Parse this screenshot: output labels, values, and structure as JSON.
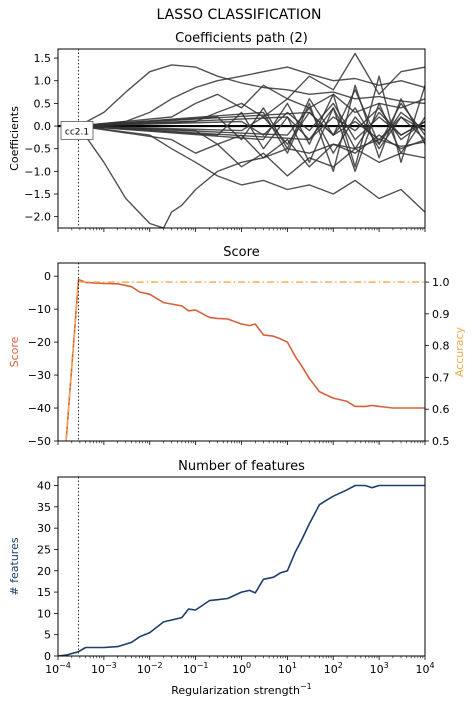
{
  "figure": {
    "title": "LASSO CLASSIFICATION"
  },
  "chart_data": [
    {
      "type": "line",
      "title": "Coefficients path (2)",
      "ylabel": "Coefficients",
      "xscale": "log",
      "xlim": [
        0.0001,
        10000
      ],
      "ylim": [
        -2.25,
        1.7
      ],
      "yticks": [
        {
          "v": 1.5,
          "label": "1.5"
        },
        {
          "v": 1.0,
          "label": "1.0"
        },
        {
          "v": 0.5,
          "label": "0.5"
        },
        {
          "v": 0.0,
          "label": "0.0"
        },
        {
          "v": -0.5,
          "label": "−0.5"
        },
        {
          "v": -1.0,
          "label": "−1.0"
        },
        {
          "v": -1.5,
          "label": "−1.5"
        },
        {
          "v": -2.0,
          "label": "−2.0"
        }
      ],
      "vline_x": 0.00028,
      "annotation": "cc2.1",
      "line_color": "#333333",
      "series": [
        {
          "x": [
            0.00028,
            0.001,
            0.003,
            0.01,
            0.03,
            0.1,
            0.3,
            1,
            3,
            10,
            30,
            100,
            300,
            1000,
            3000,
            10000
          ],
          "values": [
            0,
            0.3,
            0.75,
            1.2,
            1.35,
            1.3,
            1.1,
            0.95,
            0.85,
            0.8,
            0.7,
            0.75,
            0.6,
            0.65,
            0.55,
            0.5
          ]
        },
        {
          "x": [
            0.00028,
            0.001,
            0.003,
            0.01,
            0.02,
            0.03,
            0.05,
            0.1,
            0.3,
            1,
            3,
            10,
            30,
            100,
            300,
            1000,
            3000,
            10000
          ],
          "values": [
            0,
            -0.8,
            -1.6,
            -2.15,
            -2.25,
            -1.9,
            -1.75,
            -1.4,
            -1.0,
            -0.8,
            -0.7,
            -0.5,
            -0.6,
            -0.4,
            -0.5,
            -0.3,
            -0.45,
            -0.35
          ]
        },
        {
          "x": [
            0.00028,
            0.003,
            0.01,
            0.03,
            0.1,
            0.3,
            1,
            3,
            10,
            30,
            100,
            300,
            1000,
            3000,
            10000
          ],
          "values": [
            0,
            0.1,
            0.3,
            0.6,
            0.85,
            1.0,
            1.1,
            1.2,
            1.3,
            1.15,
            1.0,
            1.05,
            0.9,
            1.0,
            0.85
          ]
        },
        {
          "x": [
            0.00028,
            0.01,
            0.03,
            0.1,
            0.3,
            1,
            3,
            10,
            30,
            100,
            300,
            1000,
            3000,
            10000
          ],
          "values": [
            0,
            -0.2,
            -0.5,
            -0.8,
            -1.1,
            -1.3,
            -1.2,
            -1.4,
            -1.3,
            -1.5,
            -1.2,
            -1.6,
            -1.4,
            -1.9
          ]
        },
        {
          "x": [
            0.00028,
            0.03,
            0.1,
            0.3,
            1,
            3,
            10,
            30,
            100,
            300,
            1000,
            3000,
            10000
          ],
          "values": [
            0,
            0.2,
            0.5,
            0.7,
            0.4,
            0.9,
            0.6,
            1.1,
            0.8,
            1.6,
            0.7,
            1.2,
            1.3
          ]
        },
        {
          "x": [
            0.00028,
            0.03,
            0.1,
            0.3,
            1,
            3,
            10,
            30,
            100,
            300,
            1000,
            3000,
            10000
          ],
          "values": [
            0,
            -0.3,
            -0.6,
            -0.4,
            -0.9,
            -0.6,
            -1.1,
            -0.7,
            -0.9,
            -0.5,
            -0.8,
            -0.6,
            -0.7
          ]
        },
        {
          "x": [
            0.00028,
            0.1,
            0.3,
            1,
            3,
            10,
            30,
            100,
            300,
            1000,
            3000,
            10000
          ],
          "values": [
            0,
            0.1,
            0.3,
            0.5,
            0.2,
            0.6,
            0.4,
            0.7,
            0.3,
            0.5,
            0.4,
            0.6
          ]
        },
        {
          "x": [
            0.00028,
            0.1,
            0.3,
            1,
            3,
            10,
            30,
            100,
            300,
            1000,
            3000,
            10000
          ],
          "values": [
            0,
            -0.1,
            -0.4,
            -0.2,
            -0.7,
            -0.3,
            -0.9,
            -0.4,
            -0.6,
            -0.2,
            -0.5,
            -0.3
          ]
        },
        {
          "x": [
            0.00028,
            0.3,
            1,
            3,
            10,
            30,
            100,
            300,
            1000,
            3000,
            10000
          ],
          "values": [
            0,
            0.2,
            -0.3,
            0.4,
            -0.5,
            0.6,
            -0.2,
            0.8,
            -0.4,
            0.3,
            -0.1
          ]
        },
        {
          "x": [
            0.00028,
            0.3,
            1,
            3,
            10,
            30,
            100,
            300,
            1000,
            3000,
            10000
          ],
          "values": [
            0,
            -0.2,
            0.3,
            -0.5,
            0.2,
            -0.8,
            0.4,
            -1.0,
            0.5,
            -0.6,
            0.2
          ]
        },
        {
          "x": [
            0.00028,
            1,
            3,
            10,
            30,
            100,
            300,
            1000,
            3000,
            10000
          ],
          "values": [
            0,
            0.1,
            -0.2,
            0.3,
            -0.1,
            0.5,
            -0.3,
            0.2,
            -0.2,
            0.1
          ]
        },
        {
          "x": [
            0.00028,
            1,
            3,
            10,
            30,
            100,
            300,
            1000,
            3000,
            10000
          ],
          "values": [
            0,
            -0.1,
            0.2,
            -0.4,
            0.3,
            -0.2,
            0.4,
            -0.5,
            0.2,
            -0.3
          ]
        },
        {
          "x": [
            0.00028,
            3,
            10,
            30,
            100,
            300,
            1000,
            3000,
            10000
          ],
          "values": [
            0,
            0.3,
            -0.6,
            0.5,
            -1.0,
            0.9,
            -0.7,
            0.6,
            -0.4
          ]
        },
        {
          "x": [
            0.00028,
            3,
            10,
            30,
            100,
            300,
            1000,
            3000,
            10000
          ],
          "values": [
            0,
            -0.3,
            0.5,
            -0.4,
            0.7,
            -0.9,
            1.1,
            -0.8,
            0.9
          ]
        },
        {
          "x": [
            0.00028,
            10,
            30,
            100,
            300,
            1000,
            3000,
            10000
          ],
          "values": [
            0,
            0.2,
            -0.3,
            0.4,
            -0.5,
            0.3,
            -0.2,
            0.1
          ]
        },
        {
          "x": [
            0.00028,
            10,
            30,
            100,
            300,
            1000,
            3000,
            10000
          ],
          "values": [
            0,
            -0.2,
            0.4,
            -0.6,
            0.2,
            -0.4,
            0.5,
            -0.2
          ]
        },
        {
          "x": [
            0.00028,
            30,
            100,
            300,
            1000,
            3000,
            10000
          ],
          "values": [
            0,
            0.3,
            -0.2,
            0.1,
            -0.3,
            0.2,
            -0.1
          ]
        },
        {
          "x": [
            0.00028,
            30,
            100,
            300,
            1000,
            3000,
            10000
          ],
          "values": [
            0,
            -0.3,
            0.2,
            -0.1,
            0.4,
            -0.3,
            0.1
          ]
        }
      ]
    },
    {
      "type": "line",
      "title": "Score",
      "ylabel": "Score",
      "ylabel_right": "Accuracy",
      "xscale": "log",
      "xlim": [
        0.0001,
        10000
      ],
      "ylim": [
        -50,
        4
      ],
      "ylim_right": [
        0.5,
        1.06
      ],
      "yticks": [
        {
          "v": 0,
          "label": "0"
        },
        {
          "v": -10,
          "label": "−10"
        },
        {
          "v": -20,
          "label": "−20"
        },
        {
          "v": -30,
          "label": "−30"
        },
        {
          "v": -40,
          "label": "−40"
        },
        {
          "v": -50,
          "label": "−50"
        }
      ],
      "yticks_right": [
        {
          "v": 1.0,
          "label": "1.0"
        },
        {
          "v": 0.9,
          "label": "0.9"
        },
        {
          "v": 0.8,
          "label": "0.8"
        },
        {
          "v": 0.7,
          "label": "0.7"
        },
        {
          "v": 0.6,
          "label": "0.6"
        },
        {
          "v": 0.5,
          "label": "0.5"
        }
      ],
      "vline_x": 0.00028,
      "score_color": "#d9603b",
      "accuracy_color": "#f0a94a",
      "series": [
        {
          "axis": "left",
          "x": [
            0.00015,
            0.00028,
            0.0004,
            0.001,
            0.002,
            0.004,
            0.006,
            0.01,
            0.02,
            0.05,
            0.07,
            0.1,
            0.2,
            0.3,
            0.5,
            1,
            1.5,
            2,
            3,
            5,
            7,
            10,
            15,
            20,
            30,
            50,
            70,
            100,
            200,
            300,
            500,
            700,
            1000,
            2000,
            3000,
            5000,
            10000
          ],
          "values": [
            -50,
            -1,
            -1.9,
            -2.2,
            -2.3,
            -3.2,
            -4.8,
            -5.5,
            -8,
            -9,
            -10.5,
            -10.3,
            -12.5,
            -12.8,
            -13,
            -14.5,
            -15,
            -14.5,
            -17.8,
            -18.2,
            -19,
            -20,
            -24.5,
            -27,
            -31,
            -35,
            -36,
            -37,
            -38,
            -39.5,
            -39.5,
            -39.2,
            -39.5,
            -40,
            -40,
            -40,
            -40
          ]
        },
        {
          "axis": "right",
          "style": "dashdot",
          "x": [
            0.00015,
            0.00028,
            0.0004,
            0.001,
            0.01,
            0.1,
            1,
            10,
            100,
            1000,
            10000
          ],
          "values": [
            0.5,
            1.0,
            1.0,
            1.0,
            1.0,
            1.0,
            1.0,
            1.0,
            1.0,
            1.0,
            1.0
          ]
        }
      ]
    },
    {
      "type": "line",
      "title": "Number of features",
      "ylabel": "# features",
      "xlabel": "Regularization strength",
      "xlabel_sup": "−1",
      "xscale": "log",
      "xlim": [
        0.0001,
        10000
      ],
      "ylim": [
        0,
        42
      ],
      "yticks": [
        {
          "v": 40,
          "label": "40"
        },
        {
          "v": 35,
          "label": "35"
        },
        {
          "v": 30,
          "label": "30"
        },
        {
          "v": 25,
          "label": "25"
        },
        {
          "v": 20,
          "label": "20"
        },
        {
          "v": 15,
          "label": "15"
        },
        {
          "v": 10,
          "label": "10"
        },
        {
          "v": 5,
          "label": "5"
        },
        {
          "v": 0,
          "label": "0"
        }
      ],
      "xticks": [
        {
          "v": 0.0001,
          "base": "10",
          "exp": "−4"
        },
        {
          "v": 0.001,
          "base": "10",
          "exp": "−3"
        },
        {
          "v": 0.01,
          "base": "10",
          "exp": "−2"
        },
        {
          "v": 0.1,
          "base": "10",
          "exp": "−1"
        },
        {
          "v": 1,
          "base": "10",
          "exp": "0"
        },
        {
          "v": 10,
          "base": "10",
          "exp": "1"
        },
        {
          "v": 100,
          "base": "10",
          "exp": "2"
        },
        {
          "v": 1000,
          "base": "10",
          "exp": "3"
        },
        {
          "v": 10000,
          "base": "10",
          "exp": "4"
        }
      ],
      "vline_x": 0.00028,
      "line_color": "#1f3d6e",
      "series": [
        {
          "x": [
            0.0001,
            0.00015,
            0.00028,
            0.0004,
            0.001,
            0.002,
            0.004,
            0.006,
            0.01,
            0.02,
            0.05,
            0.07,
            0.1,
            0.2,
            0.3,
            0.5,
            1,
            1.5,
            2,
            3,
            5,
            7,
            10,
            15,
            20,
            30,
            50,
            70,
            100,
            200,
            300,
            500,
            700,
            1000,
            2000,
            3000,
            5000,
            10000
          ],
          "values": [
            0,
            0.2,
            1,
            2,
            2,
            2.2,
            3.2,
            4.5,
            5.5,
            8,
            9,
            11,
            10.8,
            13,
            13.2,
            13.5,
            15,
            15.4,
            14.8,
            18,
            18.5,
            19.5,
            20,
            24.5,
            27,
            31,
            35.5,
            36.5,
            37.5,
            39,
            40,
            40,
            39.5,
            40,
            40,
            40,
            40,
            40
          ]
        }
      ]
    }
  ]
}
